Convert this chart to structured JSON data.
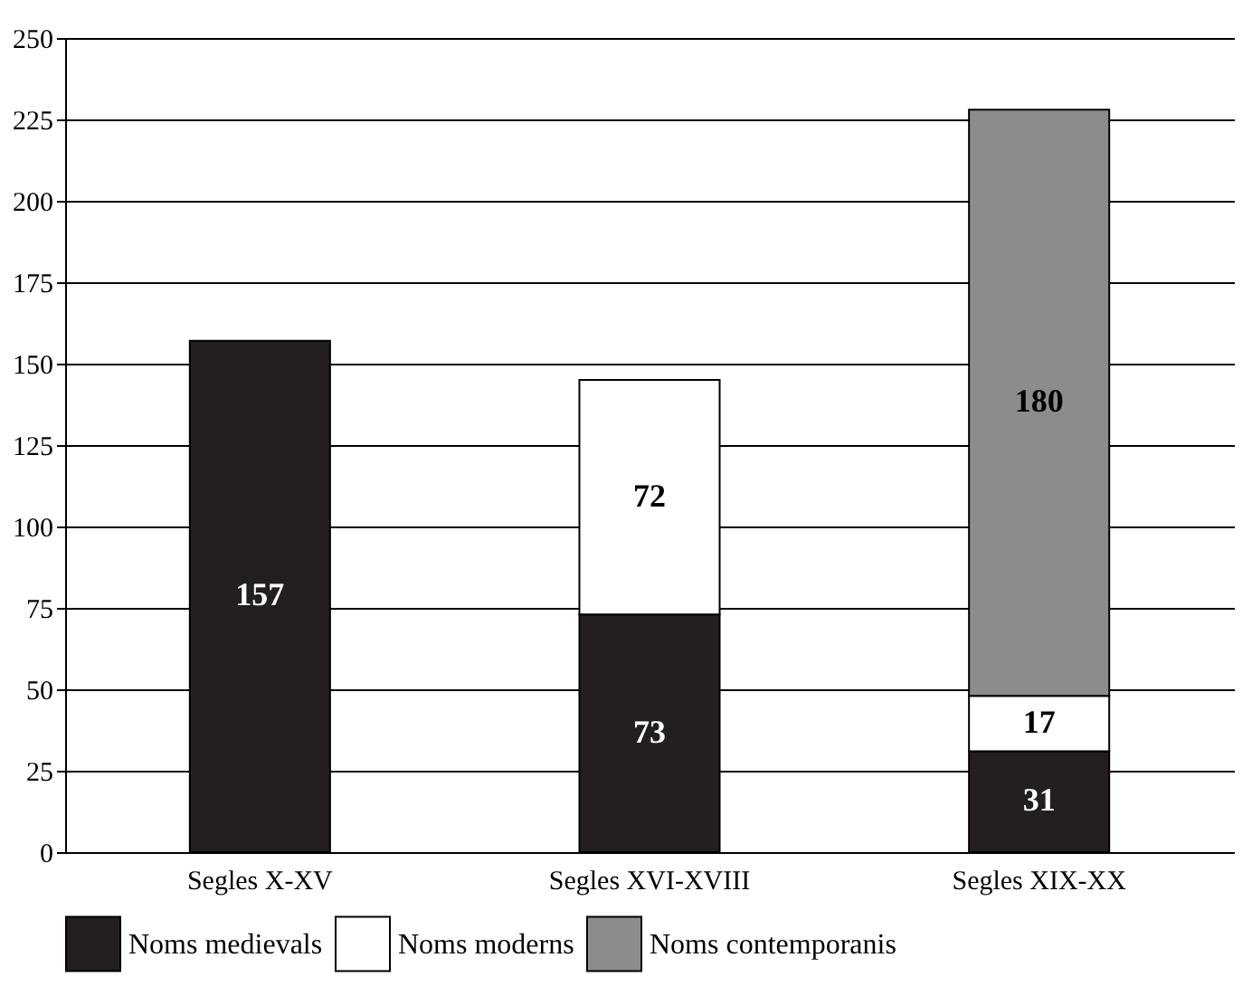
{
  "chart_data": {
    "type": "bar",
    "stacked": true,
    "categories": [
      "Segles X-XV",
      "Segles XVI-XVIII",
      "Segles XIX-XX"
    ],
    "series": [
      {
        "name": "Noms medievals",
        "color": "#231f20",
        "values": [
          157,
          73,
          31
        ]
      },
      {
        "name": "Noms moderns",
        "color": "#ffffff",
        "values": [
          null,
          72,
          17
        ]
      },
      {
        "name": "Noms contemporanis",
        "color": "#8c8c8c",
        "values": [
          null,
          null,
          180
        ]
      }
    ],
    "ylim": [
      0,
      250
    ],
    "yticks": [
      0,
      25,
      50,
      75,
      100,
      125,
      150,
      175,
      200,
      225,
      250
    ],
    "grid": "y",
    "legend": "bottom",
    "data_labels": true
  }
}
